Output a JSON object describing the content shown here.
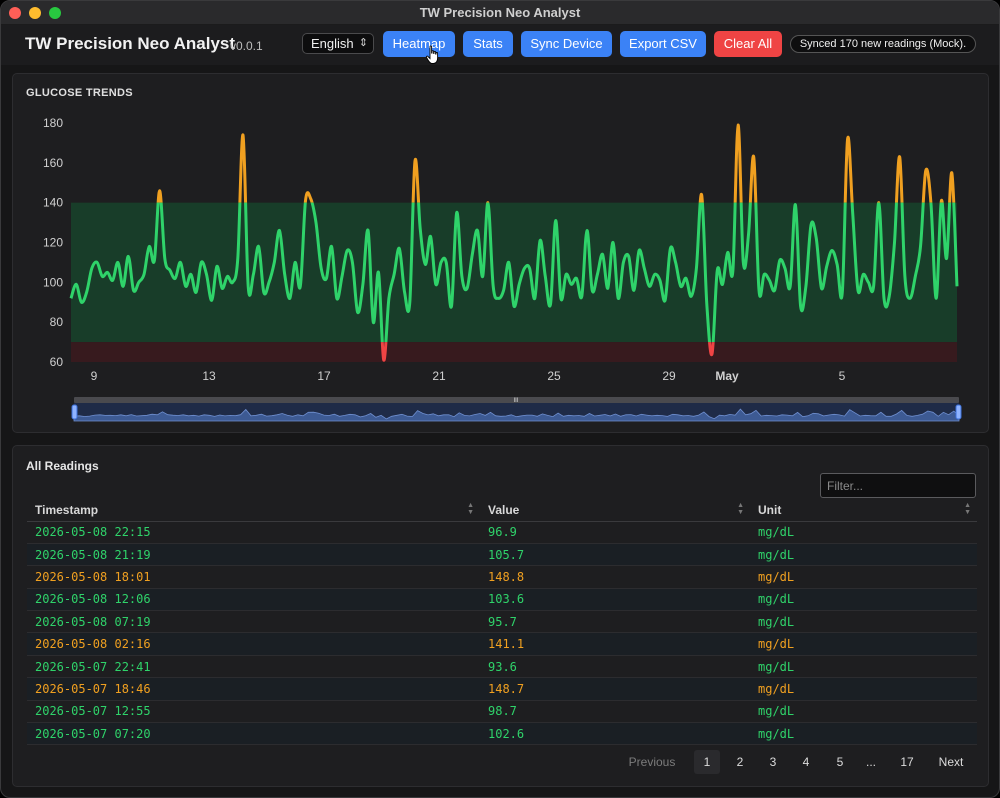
{
  "window": {
    "title": "TW Precision Neo Analyst"
  },
  "header": {
    "app_title": "TW Precision Neo Analyst",
    "version": "v0.0.1",
    "language": "English",
    "buttons": {
      "heatmap": "Heatmap",
      "stats": "Stats",
      "sync": "Sync Device",
      "export": "Export CSV",
      "clear": "Clear All"
    },
    "sync_status": "Synced 170 new readings (Mock)."
  },
  "colors": {
    "in_range": "#2fd36a",
    "high": "#f0a020",
    "low": "#ef4444",
    "accent": "#3b82f6",
    "danger": "#ef4444"
  },
  "chart": {
    "title": "GLUCOSE TRENDS",
    "chart_data": {
      "type": "line",
      "title": "GLUCOSE TRENDS",
      "xlabel": "",
      "ylabel": "",
      "ylim": [
        60,
        180
      ],
      "yticks": [
        60,
        80,
        100,
        120,
        140,
        160,
        180
      ],
      "xtick_labels": [
        "9",
        "13",
        "17",
        "21",
        "25",
        "29",
        "May",
        "5"
      ],
      "target_range": [
        70,
        140
      ],
      "low_threshold": 70,
      "high_threshold": 140,
      "grid": false,
      "series": [
        {
          "values": [
            92,
            99,
            90,
            95,
            107,
            110,
            103,
            105,
            101,
            110,
            98,
            113,
            96,
            100,
            104,
            118,
            111,
            146,
            112,
            106,
            102,
            110,
            98,
            104,
            95,
            110,
            104,
            91,
            108,
            97,
            103,
            100,
            112,
            174,
            98,
            104,
            118,
            95,
            100,
            110,
            126,
            104,
            92,
            110,
            98,
            141,
            142,
            130,
            107,
            102,
            118,
            92,
            103,
            116,
            110,
            85,
            99,
            126,
            80,
            105,
            61,
            92,
            104,
            117,
            95,
            90,
            161,
            127,
            109,
            123,
            99,
            110,
            110,
            88,
            135,
            103,
            97,
            114,
            126,
            103,
            140,
            98,
            92,
            96,
            110,
            88,
            99,
            107,
            107,
            92,
            121,
            103,
            89,
            131,
            92,
            104,
            99,
            102,
            93,
            126,
            96,
            104,
            114,
            97,
            120,
            92,
            110,
            113,
            96,
            116,
            107,
            98,
            104,
            101,
            91,
            117,
            110,
            98,
            102,
            93,
            107,
            144,
            89,
            64,
            106,
            99,
            115,
            106,
            179,
            110,
            124,
            163,
            96,
            104,
            101,
            96,
            111,
            107,
            98,
            139,
            88,
            98,
            129,
            122,
            97,
            108,
            116,
            109,
            95,
            172,
            134,
            96,
            104,
            100,
            98,
            140,
            92,
            93,
            120,
            163,
            103,
            92,
            103,
            118,
            156,
            140,
            92,
            141,
            112,
            155,
            98
          ]
        }
      ]
    },
    "navigator": {
      "grip_label": "III"
    }
  },
  "table": {
    "title": "All Readings",
    "filter_placeholder": "Filter...",
    "columns": [
      "Timestamp",
      "Value",
      "Unit"
    ],
    "rows": [
      {
        "timestamp": "2026-05-08 22:15",
        "value": "96.9",
        "unit": "mg/dL",
        "status": "in_range"
      },
      {
        "timestamp": "2026-05-08 21:19",
        "value": "105.7",
        "unit": "mg/dL",
        "status": "in_range"
      },
      {
        "timestamp": "2026-05-08 18:01",
        "value": "148.8",
        "unit": "mg/dL",
        "status": "high"
      },
      {
        "timestamp": "2026-05-08 12:06",
        "value": "103.6",
        "unit": "mg/dL",
        "status": "in_range"
      },
      {
        "timestamp": "2026-05-08 07:19",
        "value": "95.7",
        "unit": "mg/dL",
        "status": "in_range"
      },
      {
        "timestamp": "2026-05-08 02:16",
        "value": "141.1",
        "unit": "mg/dL",
        "status": "high"
      },
      {
        "timestamp": "2026-05-07 22:41",
        "value": "93.6",
        "unit": "mg/dL",
        "status": "in_range"
      },
      {
        "timestamp": "2026-05-07 18:46",
        "value": "148.7",
        "unit": "mg/dL",
        "status": "high"
      },
      {
        "timestamp": "2026-05-07 12:55",
        "value": "98.7",
        "unit": "mg/dL",
        "status": "in_range"
      },
      {
        "timestamp": "2026-05-07 07:20",
        "value": "102.6",
        "unit": "mg/dL",
        "status": "in_range"
      }
    ],
    "pagination": {
      "previous": "Previous",
      "pages": [
        "1",
        "2",
        "3",
        "4",
        "5",
        "...",
        "17"
      ],
      "current": "1",
      "next": "Next"
    }
  }
}
